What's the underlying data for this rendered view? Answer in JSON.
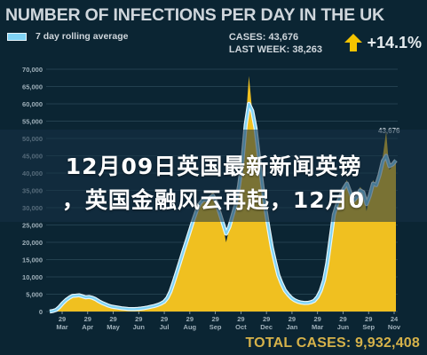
{
  "chart_data": {
    "type": "area",
    "title": "NUMBER OF INFECTIONS PER DAY IN THE UK",
    "legend": {
      "label": "7 day rolling average",
      "placement": "top-left"
    },
    "stats": {
      "cases": "CASES: 43,676",
      "last_week": "LAST WEEK: 38,263",
      "change": "+14.1%"
    },
    "total": {
      "label": "TOTAL CASES:",
      "value": "9,932,408"
    },
    "y_ticks": [
      "70,000",
      "65,000",
      "60,000",
      "55,000",
      "50,000",
      "45,000",
      "40,000",
      "35,000",
      "30,000",
      "25,000",
      "20,000",
      "15,000",
      "10,000",
      "5,000",
      "0"
    ],
    "ylim": [
      0,
      70000
    ],
    "x_ticks": [
      {
        "day": "29",
        "month": "Mar"
      },
      {
        "day": "29",
        "month": "Apr"
      },
      {
        "day": "29",
        "month": "May"
      },
      {
        "day": "29",
        "month": "Jun"
      },
      {
        "day": "29",
        "month": "Jul"
      },
      {
        "day": "29",
        "month": "Aug"
      },
      {
        "day": "29",
        "month": "Sep"
      },
      {
        "day": "29",
        "month": "Oct"
      },
      {
        "day": "29",
        "month": "Dec"
      },
      {
        "day": "29",
        "month": "Jan"
      },
      {
        "day": "29",
        "month": "Mar"
      },
      {
        "day": "29",
        "month": "Jun"
      },
      {
        "day": "29",
        "month": "Sep"
      },
      {
        "day": "24",
        "month": "Nov"
      }
    ],
    "end_label": "43,676",
    "grid": true,
    "daily_cases": [
      0,
      200,
      600,
      1500,
      2800,
      3500,
      4200,
      4800,
      4500,
      5000,
      4200,
      3800,
      4600,
      4000,
      3500,
      2800,
      2200,
      2000,
      1600,
      1300,
      1200,
      1000,
      900,
      800,
      700,
      650,
      700,
      800,
      900,
      1000,
      1200,
      1400,
      1600,
      1900,
      2300,
      2800,
      4000,
      6000,
      9000,
      12000,
      15000,
      18000,
      21000,
      24000,
      27000,
      30000,
      32000,
      33000,
      31000,
      33000,
      35000,
      31000,
      28000,
      25000,
      20000,
      24000,
      28000,
      30000,
      36000,
      42000,
      55000,
      68000,
      58000,
      55000,
      46000,
      37000,
      30000,
      24000,
      18000,
      14000,
      10000,
      8000,
      6000,
      4800,
      3800,
      3200,
      2800,
      2600,
      2400,
      2500,
      2700,
      3000,
      4200,
      6000,
      9000,
      14000,
      21000,
      29000,
      31000,
      34000,
      36000,
      38000,
      34000,
      31000,
      33000,
      36000,
      35000,
      29000,
      34000,
      38000,
      36000,
      40000,
      45000,
      52000,
      41000,
      42000,
      43676
    ],
    "rolling_avg": [
      0,
      150,
      500,
      1300,
      2400,
      3300,
      4000,
      4500,
      4600,
      4700,
      4400,
      4100,
      4200,
      4000,
      3600,
      3000,
      2500,
      2100,
      1700,
      1400,
      1250,
      1100,
      950,
      850,
      750,
      700,
      700,
      780,
      880,
      1000,
      1180,
      1380,
      1600,
      1880,
      2250,
      2800,
      3900,
      5800,
      8600,
      11600,
      14600,
      17600,
      20500,
      23500,
      26500,
      29200,
      31200,
      32300,
      32200,
      32800,
      33500,
      31500,
      28500,
      25500,
      22500,
      24500,
      27800,
      31000,
      36500,
      43500,
      54000,
      60000,
      58000,
      53000,
      45000,
      37000,
      30000,
      24000,
      18500,
      14300,
      10500,
      8100,
      6100,
      4900,
      3900,
      3250,
      2850,
      2600,
      2450,
      2500,
      2700,
      3100,
      4200,
      6100,
      9100,
      14000,
      21000,
      28000,
      31000,
      33500,
      35500,
      37000,
      34500,
      32000,
      33000,
      35000,
      34500,
      31000,
      33500,
      37000,
      36500,
      39500,
      43500,
      45000,
      42000,
      42500,
      43676
    ]
  },
  "banner": {
    "line1": "12月09日英国最新新闻英镑",
    "line2": "，英国金融风云再起，12月0"
  }
}
